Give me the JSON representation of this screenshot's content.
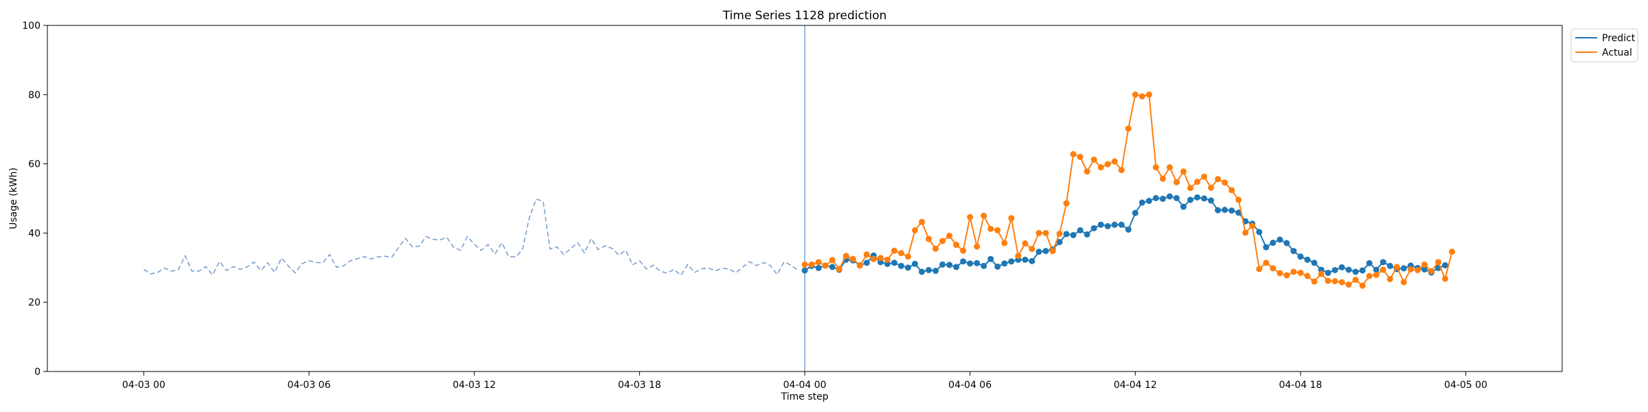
{
  "chart_data": {
    "type": "line",
    "title": "Time Series 1128 prediction",
    "xlabel": "Time step",
    "ylabel": "Usage (kWh)",
    "ylim": [
      0,
      100
    ],
    "yticks": [
      0,
      20,
      40,
      60,
      80,
      100
    ],
    "xlim_hours": [
      -3.5,
      51.5
    ],
    "xticks": [
      {
        "hour": 0,
        "label": "04-03 00"
      },
      {
        "hour": 6,
        "label": "04-03 06"
      },
      {
        "hour": 12,
        "label": "04-03 12"
      },
      {
        "hour": 18,
        "label": "04-03 18"
      },
      {
        "hour": 24,
        "label": "04-04 00"
      },
      {
        "hour": 30,
        "label": "04-04 06"
      },
      {
        "hour": 36,
        "label": "04-04 12"
      },
      {
        "hour": 42,
        "label": "04-04 18"
      },
      {
        "hour": 48,
        "label": "04-05 00"
      }
    ],
    "grid": false,
    "legend_position": "outside upper right",
    "forecast_start": "04-04 00",
    "step_minutes": 15,
    "history": {
      "start": "04-03 00:00",
      "color": "#7b9fcf",
      "values": [
        29.5,
        28.2,
        28.6,
        29.9,
        29.0,
        29.3,
        33.4,
        29.0,
        29.0,
        30.3,
        27.9,
        31.8,
        29.2,
        30.3,
        29.5,
        30.2,
        31.6,
        29.2,
        31.4,
        28.6,
        32.8,
        30.5,
        28.5,
        31.2,
        32.0,
        31.5,
        31.4,
        33.8,
        30.1,
        30.5,
        32.0,
        32.6,
        33.2,
        32.5,
        33.1,
        33.3,
        33.0,
        35.8,
        38.5,
        36.0,
        36.2,
        39.0,
        38.2,
        38.0,
        38.8,
        35.9,
        35.0,
        39.0,
        36.8,
        35.0,
        36.7,
        33.9,
        37.2,
        33.2,
        33.1,
        35.2,
        44.5,
        49.8,
        49.2,
        35.4,
        36.0,
        33.8,
        35.5,
        37.2,
        34.3,
        38.4,
        35.2,
        36.3,
        35.6,
        33.6,
        35.0,
        30.8,
        32.0,
        29.6,
        30.7,
        29.0,
        28.4,
        29.5,
        27.8,
        30.9,
        28.6,
        29.7,
        29.9,
        29.1,
        29.8,
        29.6,
        28.5,
        30.2,
        31.7,
        30.6,
        31.5,
        30.6,
        28.0,
        31.7,
        30.7,
        29.3
      ]
    },
    "series": [
      {
        "name": "Predict",
        "color": "#1f77b4",
        "start": "04-04 00:00",
        "values": [
          29.2,
          30.5,
          29.9,
          30.6,
          30.2,
          29.4,
          32.3,
          32.1,
          30.7,
          31.4,
          33.5,
          31.6,
          31.1,
          31.4,
          30.5,
          30.0,
          31.1,
          28.8,
          29.3,
          29.1,
          30.9,
          30.8,
          30.2,
          31.8,
          31.2,
          31.3,
          30.5,
          32.5,
          30.3,
          31.2,
          31.8,
          32.3,
          32.3,
          31.9,
          34.6,
          34.8,
          35.3,
          37.4,
          39.7,
          39.4,
          40.8,
          39.6,
          41.4,
          42.4,
          42.0,
          42.4,
          42.4,
          41.0,
          45.8,
          48.8,
          49.3,
          50.1,
          49.9,
          50.6,
          50.1,
          47.6,
          49.6,
          50.3,
          50.0,
          49.4,
          46.6,
          46.7,
          46.5,
          45.9,
          43.4,
          42.7,
          40.3,
          35.9,
          37.2,
          38.1,
          37.1,
          34.8,
          33.2,
          32.3,
          31.4,
          29.4,
          28.5,
          29.3,
          30.1,
          29.4,
          28.8,
          29.2,
          31.3,
          29.4,
          31.6,
          30.5,
          29.6,
          29.8,
          30.6,
          29.9,
          29.5,
          28.6,
          29.9,
          30.7
        ]
      },
      {
        "name": "Actual",
        "color": "#ff7f0e",
        "start": "04-04 00:00",
        "values": [
          30.9,
          30.9,
          31.6,
          30.6,
          32.2,
          29.6,
          33.4,
          32.5,
          30.6,
          33.8,
          32.5,
          32.8,
          32.3,
          34.9,
          34.2,
          33.2,
          40.8,
          43.2,
          38.3,
          35.5,
          37.7,
          39.2,
          36.6,
          34.9,
          44.6,
          36.1,
          45.0,
          41.2,
          40.8,
          37.1,
          44.3,
          33.4,
          37.0,
          35.4,
          40.0,
          40.0,
          34.8,
          39.8,
          48.6,
          62.8,
          62.0,
          57.8,
          61.2,
          59.0,
          59.9,
          60.7,
          58.2,
          70.2,
          80.0,
          79.5,
          80.0,
          59.0,
          55.7,
          59.0,
          54.7,
          57.8,
          53.0,
          54.8,
          56.3,
          53.1,
          55.6,
          54.6,
          52.4,
          49.6,
          40.1,
          42.1,
          29.6,
          31.4,
          29.8,
          28.4,
          27.8,
          28.8,
          28.5,
          27.6,
          26.0,
          28.2,
          26.2,
          26.1,
          25.8,
          25.1,
          26.5,
          24.8,
          27.6,
          27.9,
          29.4,
          26.7,
          30.2,
          25.8,
          29.5,
          29.3,
          30.9,
          29.0,
          31.6,
          26.8,
          34.6
        ]
      }
    ]
  }
}
